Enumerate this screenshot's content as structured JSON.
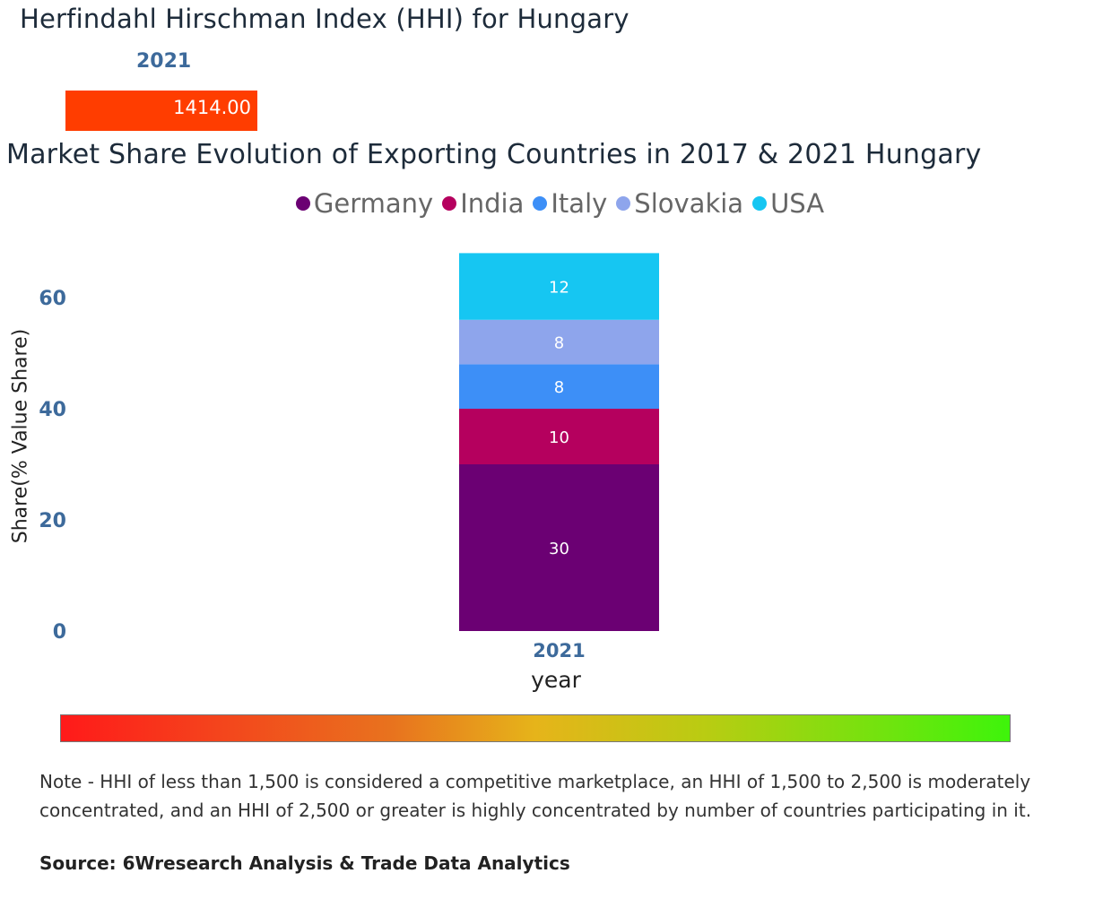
{
  "hhi": {
    "title": "Herfindahl Hirschman Index (HHI) for Hungary",
    "year": "2021",
    "value_label": "1414.00",
    "value": 1414.0,
    "bar_color": "#ff3d00"
  },
  "chart_title": "Market Share Evolution of Exporting Countries in 2017 & 2021 Hungary",
  "legend": [
    {
      "name": "Germany",
      "color": "#6b0073"
    },
    {
      "name": "India",
      "color": "#b5005e"
    },
    {
      "name": "Italy",
      "color": "#3d8ff7"
    },
    {
      "name": "Slovakia",
      "color": "#8ea5ec"
    },
    {
      "name": "USA",
      "color": "#16c6f2"
    }
  ],
  "chart_data": {
    "type": "bar",
    "stacked": true,
    "categories": [
      "2021"
    ],
    "series": [
      {
        "name": "Germany",
        "values": [
          30
        ],
        "color": "#6b0073"
      },
      {
        "name": "India",
        "values": [
          10
        ],
        "color": "#b5005e"
      },
      {
        "name": "Italy",
        "values": [
          8
        ],
        "color": "#3d8ff7"
      },
      {
        "name": "Slovakia",
        "values": [
          8
        ],
        "color": "#8ea5ec"
      },
      {
        "name": "USA",
        "values": [
          12
        ],
        "color": "#16c6f2"
      }
    ],
    "xlabel": "year",
    "ylabel": "Share(% Value Share)",
    "ylim": [
      0,
      68
    ],
    "yticks": [
      0,
      20,
      40,
      60
    ],
    "grid": false,
    "legend_position": "top-center"
  },
  "scale_bar": {
    "colors": [
      "#ff1a1a",
      "#e8731e",
      "#e6b41a",
      "#b9cc12",
      "#3ef40b"
    ]
  },
  "note": "Note - HHI of less than 1,500 is considered a competitive marketplace, an HHI of 1,500 to 2,500 is moderately concentrated, and an HHI of 2,500 or greater is highly concentrated by number of countries participating in it.",
  "source": "Source: 6Wresearch Analysis & Trade Data Analytics"
}
